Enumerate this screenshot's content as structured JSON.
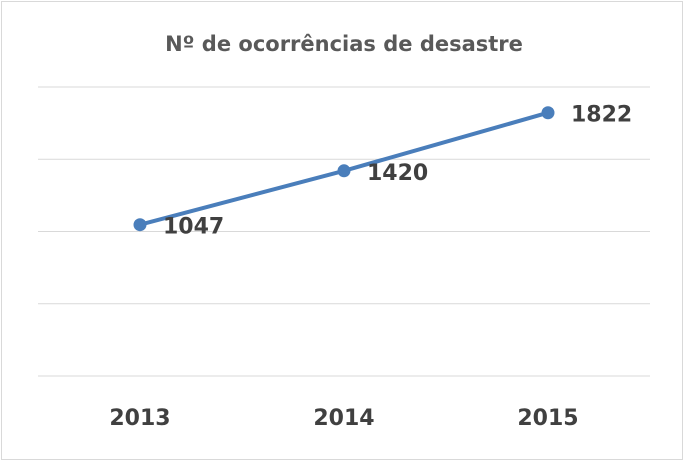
{
  "chart_data": {
    "type": "line",
    "title": "Nº de ocorrências de desastre",
    "categories": [
      "2013",
      "2014",
      "2015"
    ],
    "series": [
      {
        "name": "Nº de ocorrências de desastre",
        "color": "#4a7ebb",
        "values": [
          1047,
          1420,
          1822
        ]
      }
    ],
    "ylim": [
      0,
      2000
    ],
    "yticks": [
      0,
      500,
      1000,
      1500,
      2000
    ],
    "grid": true
  }
}
